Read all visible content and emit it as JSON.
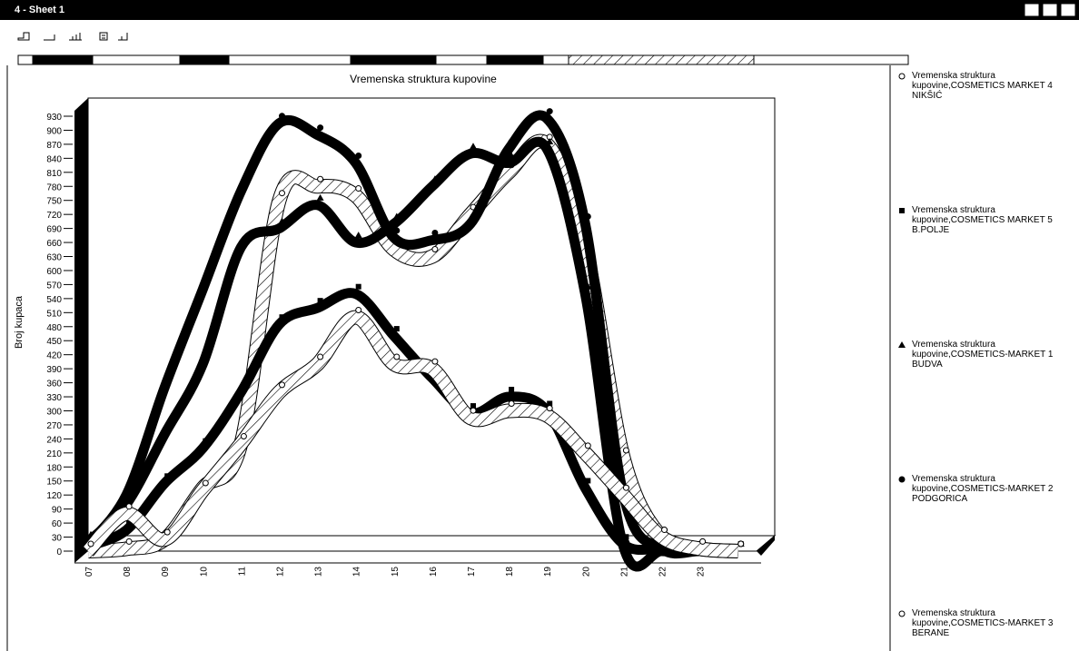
{
  "window": {
    "title": "4 - Sheet 1"
  },
  "chart_data": {
    "type": "line",
    "title": "Vremenska struktura kupovine",
    "y_label": "Broj kupaca",
    "categories": [
      "07",
      "08",
      "09",
      "10",
      "11",
      "12",
      "13",
      "14",
      "15",
      "16",
      "17",
      "18",
      "19",
      "20",
      "21",
      "22",
      "23",
      null
    ],
    "ylim": [
      0,
      930
    ],
    "yticks": [
      0,
      30,
      60,
      90,
      120,
      150,
      180,
      210,
      240,
      270,
      300,
      330,
      360,
      390,
      420,
      450,
      480,
      510,
      540,
      570,
      600,
      630,
      660,
      690,
      720,
      750,
      780,
      810,
      840,
      870,
      900,
      930
    ],
    "legend": "right",
    "series": [
      {
        "name": "Vremenska struktura kupovine,COSMETICS MARKET 4 NIKŠIĆ",
        "color": "#000000",
        "marker": "circle-open",
        "style": "hatched",
        "values": [
          0,
          5,
          25,
          135,
          230,
          750,
          780,
          760,
          645,
          630,
          720,
          810,
          870,
          650,
          200,
          30,
          5,
          0
        ]
      },
      {
        "name": "Vremenska struktura kupovine,COSMETICS MARKET 5 B.POLJE",
        "color": "#000000",
        "marker": "square",
        "style": "solid",
        "values": [
          10,
          45,
          145,
          220,
          340,
          485,
          520,
          550,
          460,
          370,
          295,
          330,
          300,
          135,
          15,
          5,
          0,
          0
        ]
      },
      {
        "name": "Vremenska struktura kupovine,COSMETICS-MARKET 1 BUDVA",
        "color": "#000000",
        "marker": "triangle",
        "style": "solid",
        "values": [
          20,
          100,
          250,
          400,
          650,
          690,
          740,
          660,
          700,
          780,
          850,
          830,
          860,
          550,
          10,
          0,
          0,
          0
        ]
      },
      {
        "name": "Vremenska struktura kupovine,COSMETICS-MARKET 2 PODGORICA",
        "color": "#000000",
        "marker": "circle",
        "style": "solid",
        "values": [
          15,
          120,
          350,
          560,
          770,
          915,
          890,
          830,
          670,
          665,
          700,
          860,
          925,
          700,
          120,
          5,
          0,
          0
        ]
      },
      {
        "name": "Vremenska struktura kupovine,COSMETICS-MARKET 3 BERANE",
        "color": "#000000",
        "marker": "circle-open",
        "style": "hatched",
        "values": [
          0,
          80,
          25,
          130,
          230,
          340,
          400,
          500,
          400,
          390,
          285,
          300,
          290,
          210,
          120,
          30,
          5,
          0
        ]
      }
    ]
  }
}
